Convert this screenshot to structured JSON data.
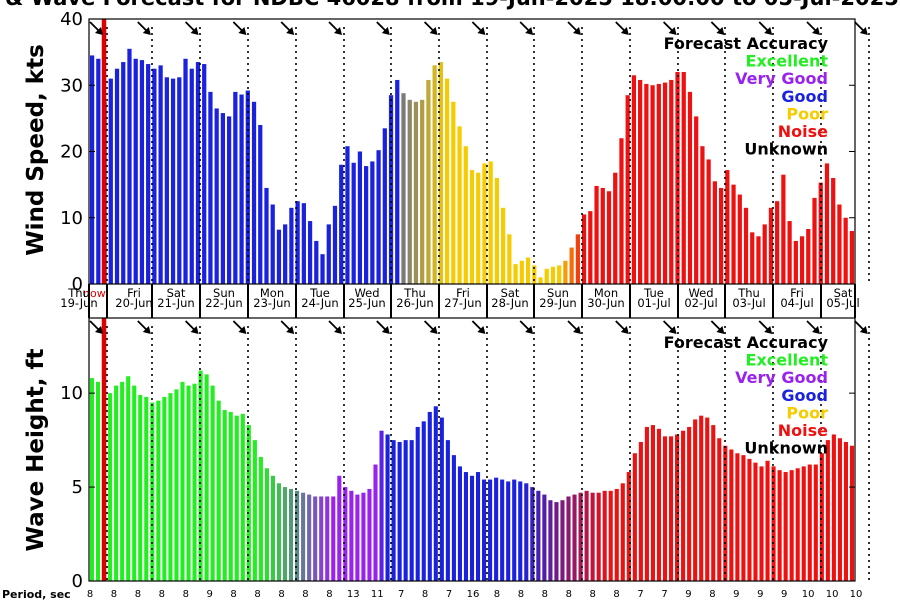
{
  "title": "& Wave Forecast for NDBC 46028 from 19-Jun-2025 18:00:00 to 05-Jul-2025",
  "now_label": "now",
  "period_label": "Period, sec",
  "colors": {
    "excellent": "#22ee22",
    "very_good": "#9922ee",
    "good": "#1a22dd",
    "poor": "#f5cc00",
    "noise": "#ee1111",
    "unknown": "#000000",
    "now_line": "#dd0000"
  },
  "legend": {
    "title": "Forecast Accuracy",
    "items": [
      {
        "label": "Excellent",
        "color": "#22ee22"
      },
      {
        "label": "Very Good",
        "color": "#9922ee"
      },
      {
        "label": "Good",
        "color": "#1a22dd"
      },
      {
        "label": "Poor",
        "color": "#f5cc00"
      },
      {
        "label": "Noise",
        "color": "#ee1111"
      },
      {
        "label": "Unknown",
        "color": "#000000"
      }
    ]
  },
  "days": [
    {
      "dow": "Thu",
      "date": "19-Jun"
    },
    {
      "dow": "Fri",
      "date": "20-Jun"
    },
    {
      "dow": "Sat",
      "date": "21-Jun"
    },
    {
      "dow": "Sun",
      "date": "22-Jun"
    },
    {
      "dow": "Mon",
      "date": "23-Jun"
    },
    {
      "dow": "Tue",
      "date": "24-Jun"
    },
    {
      "dow": "Wed",
      "date": "25-Jun"
    },
    {
      "dow": "Thu",
      "date": "26-Jun"
    },
    {
      "dow": "Fri",
      "date": "27-Jun"
    },
    {
      "dow": "Sat",
      "date": "28-Jun"
    },
    {
      "dow": "Sun",
      "date": "29-Jun"
    },
    {
      "dow": "Mon",
      "date": "30-Jun"
    },
    {
      "dow": "Tue",
      "date": "01-Jul"
    },
    {
      "dow": "Wed",
      "date": "02-Jul"
    },
    {
      "dow": "Thu",
      "date": "03-Jul"
    },
    {
      "dow": "Fri",
      "date": "04-Jul"
    },
    {
      "dow": "Sat",
      "date": "05-Jul"
    }
  ],
  "chart_data": [
    {
      "type": "bar",
      "ylabel": "Wind Speed, kts",
      "ylim": [
        0,
        40
      ],
      "yticks": [
        0,
        10,
        20,
        30,
        40
      ],
      "values": [
        34.5,
        34,
        27.5,
        31,
        32.5,
        33.5,
        35.5,
        34,
        33.8,
        33.2,
        32.5,
        33,
        31.2,
        31,
        31.2,
        34,
        32.5,
        33.5,
        33.2,
        29,
        26.5,
        25.8,
        25.3,
        29,
        28.6,
        29.2,
        27.5,
        24,
        14.5,
        12,
        8.2,
        9,
        11.5,
        12.5,
        12.2,
        9.5,
        6.5,
        4.5,
        9,
        11.8,
        18,
        20.8,
        18.3,
        20,
        17.8,
        18.5,
        20.2,
        23.5,
        28.5,
        30.8,
        28.8,
        27.8,
        27.5,
        27.8,
        30.8,
        33,
        33.5,
        31,
        27.5,
        23.8,
        20.8,
        17.2,
        16.8,
        18.2,
        18.5,
        16,
        11.5,
        7.5,
        3,
        3.5,
        4,
        2.8,
        1,
        2.3,
        2.6,
        2.8,
        3.5,
        5.5,
        7.5,
        10.5,
        11,
        14.8,
        14.5,
        14,
        16.8,
        22,
        28.5,
        31.5,
        30.8,
        30.2,
        30,
        30.2,
        30.4,
        30.8,
        32,
        32,
        29,
        25.3,
        20.8,
        18.8,
        15.5,
        14.5,
        17.2,
        15,
        13.5,
        11.5,
        7.8,
        7.2,
        9,
        11.5,
        12.5,
        16.5,
        9.5,
        6.5,
        7.2,
        8.3,
        13,
        15.3,
        18.2,
        16,
        12,
        10,
        8
      ]
    },
    {
      "type": "bar",
      "ylabel": "Wave Height, ft",
      "ylim": [
        0,
        14
      ],
      "yticks": [
        0,
        5,
        10
      ],
      "values": [
        10.8,
        10.6,
        10.2,
        10,
        10.4,
        10.6,
        10.9,
        10.4,
        9.9,
        9.8,
        9.5,
        9.6,
        9.8,
        10,
        10.2,
        10.6,
        10.4,
        10.5,
        11.2,
        11,
        10.4,
        9.6,
        9.1,
        9,
        8.8,
        8.9,
        8.3,
        7.5,
        6.6,
        6,
        5.6,
        5.2,
        5,
        4.9,
        4.8,
        4.7,
        4.6,
        4.5,
        4.5,
        4.5,
        4.5,
        5.6,
        5,
        4.8,
        4.6,
        4.7,
        4.9,
        6.2,
        8,
        7.8,
        7.5,
        7.4,
        7.5,
        7.5,
        8.2,
        8.5,
        9,
        9.3,
        8.7,
        7.5,
        6.7,
        6.1,
        5.8,
        5.6,
        5.8,
        5.4,
        5.4,
        5.5,
        5.4,
        5.3,
        5.4,
        5.3,
        5.2,
        5,
        4.8,
        4.6,
        4.3,
        4.2,
        4.3,
        4.5,
        4.6,
        4.7,
        4.8,
        4.7,
        4.7,
        4.8,
        4.8,
        4.9,
        5.2,
        5.8,
        6.8,
        7.4,
        8.2,
        8.3,
        8.1,
        7.7,
        7.7,
        7.8,
        8,
        8.2,
        8.6,
        8.8,
        8.7,
        8.3,
        7.6,
        7.2,
        7,
        6.8,
        6.7,
        6.5,
        6.3,
        6.1,
        6.4,
        6.1,
        5.9,
        5.8,
        5.9,
        6,
        6.1,
        6.2,
        6.2,
        6.8,
        7.5,
        7.8,
        7.6,
        7.4,
        7.2
      ]
    }
  ],
  "period_values": [
    "8",
    "8",
    "8",
    "8",
    "8",
    "9",
    "8",
    "8",
    "8",
    "8",
    "8",
    "13",
    "11",
    "7",
    "8",
    "7",
    "16",
    "8",
    "8",
    "8",
    "8",
    "8",
    "8",
    "7",
    "7",
    "9",
    "8",
    "9",
    "9",
    "9",
    "10",
    "10",
    "10"
  ]
}
